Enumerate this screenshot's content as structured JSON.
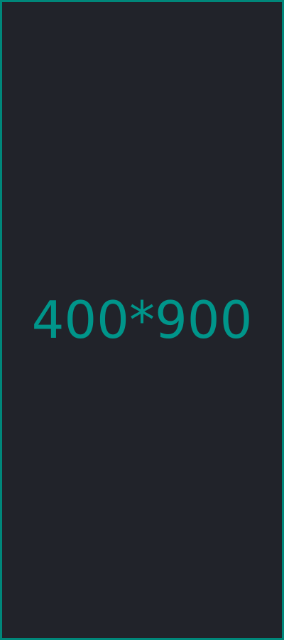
{
  "placeholder": {
    "label": "400*900"
  },
  "colors": {
    "background": "#21232a",
    "border": "#00877a",
    "text": "#00958a"
  }
}
